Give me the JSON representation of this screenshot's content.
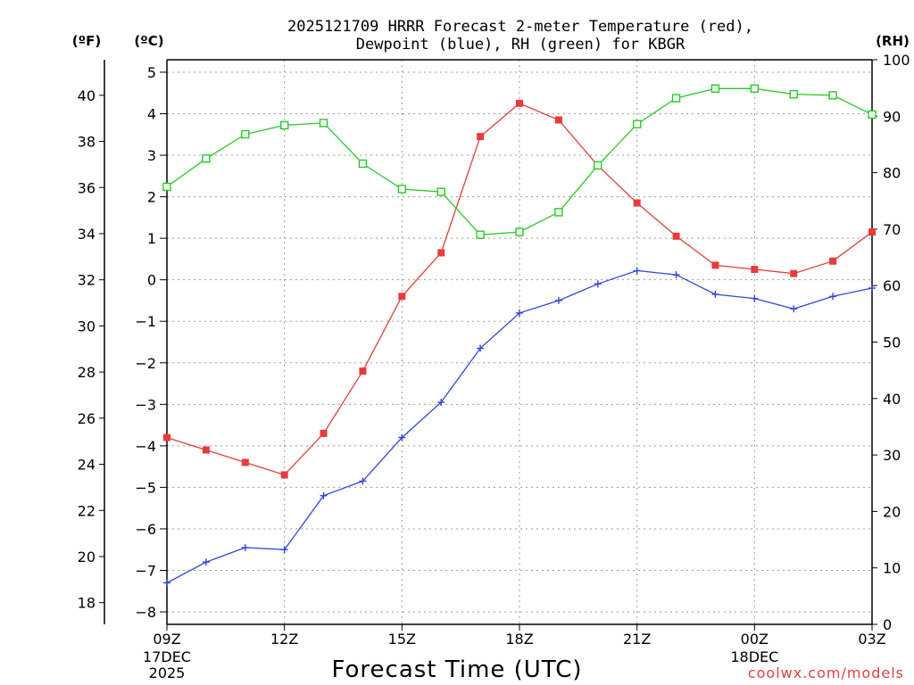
{
  "chart_data": {
    "type": "line",
    "title_line1": "2025121709 HRRR Forecast 2-meter Temperature (red),",
    "title_line2": "Dewpoint (blue), RH (green) for KBGR",
    "xlabel": "Forecast Time (UTC)",
    "credit": "coolwx.com/models",
    "units": {
      "fahrenheit": "(ºF)",
      "celsius": "(ºC)",
      "rh": "(RH)"
    },
    "hours": [
      0,
      1,
      2,
      3,
      4,
      5,
      6,
      7,
      8,
      9,
      10,
      11,
      12,
      13,
      14,
      15,
      16,
      17,
      18
    ],
    "x_ticks": [
      {
        "hour": 0,
        "label": "09Z"
      },
      {
        "hour": 3,
        "label": "12Z"
      },
      {
        "hour": 6,
        "label": "15Z"
      },
      {
        "hour": 9,
        "label": "18Z"
      },
      {
        "hour": 12,
        "label": "21Z"
      },
      {
        "hour": 15,
        "label": "00Z"
      },
      {
        "hour": 18,
        "label": "03Z"
      }
    ],
    "date_labels": [
      {
        "hour": 0,
        "lines": [
          "17DEC",
          "2025"
        ]
      },
      {
        "hour": 15,
        "lines": [
          "18DEC"
        ]
      }
    ],
    "ylim_c": [
      -8.3,
      5.3
    ],
    "ylim_rh": [
      0,
      100
    ],
    "celsius_ticks": [
      5,
      4,
      3,
      2,
      1,
      0,
      -1,
      -2,
      -3,
      -4,
      -5,
      -6,
      -7,
      -8
    ],
    "fahrenheit_ticks": [
      40,
      38,
      36,
      34,
      32,
      30,
      28,
      26,
      24,
      22,
      20,
      18
    ],
    "rh_ticks": [
      100,
      90,
      80,
      70,
      60,
      50,
      40,
      30,
      20,
      10,
      0
    ],
    "series": [
      {
        "name": "2-meter Temperature",
        "axis": "celsius",
        "color": "#e83b3b",
        "marker": "filled-square",
        "values": [
          -3.8,
          -4.1,
          -4.4,
          -4.7,
          -3.7,
          -2.2,
          -0.4,
          0.65,
          3.45,
          4.25,
          3.85,
          2.75,
          1.85,
          1.05,
          0.35,
          0.25,
          0.15,
          0.45,
          1.15
        ]
      },
      {
        "name": "Dewpoint",
        "axis": "celsius",
        "color": "#2f47e0",
        "marker": "plus",
        "values": [
          -7.3,
          -6.8,
          -6.45,
          -6.5,
          -5.2,
          -4.85,
          -3.8,
          -2.95,
          -1.65,
          -0.8,
          -0.5,
          -0.1,
          0.22,
          0.12,
          -0.35,
          -0.45,
          -0.7,
          -0.4,
          -0.2
        ]
      },
      {
        "name": "RH",
        "axis": "rh",
        "color": "#22cc22",
        "marker": "open-square",
        "values": [
          77.5,
          82.5,
          86.8,
          88.4,
          88.8,
          81.6,
          77.1,
          76.6,
          69.0,
          69.5,
          73.0,
          81.3,
          88.6,
          93.2,
          94.9,
          94.9,
          93.9,
          93.7,
          90.3
        ]
      }
    ]
  }
}
